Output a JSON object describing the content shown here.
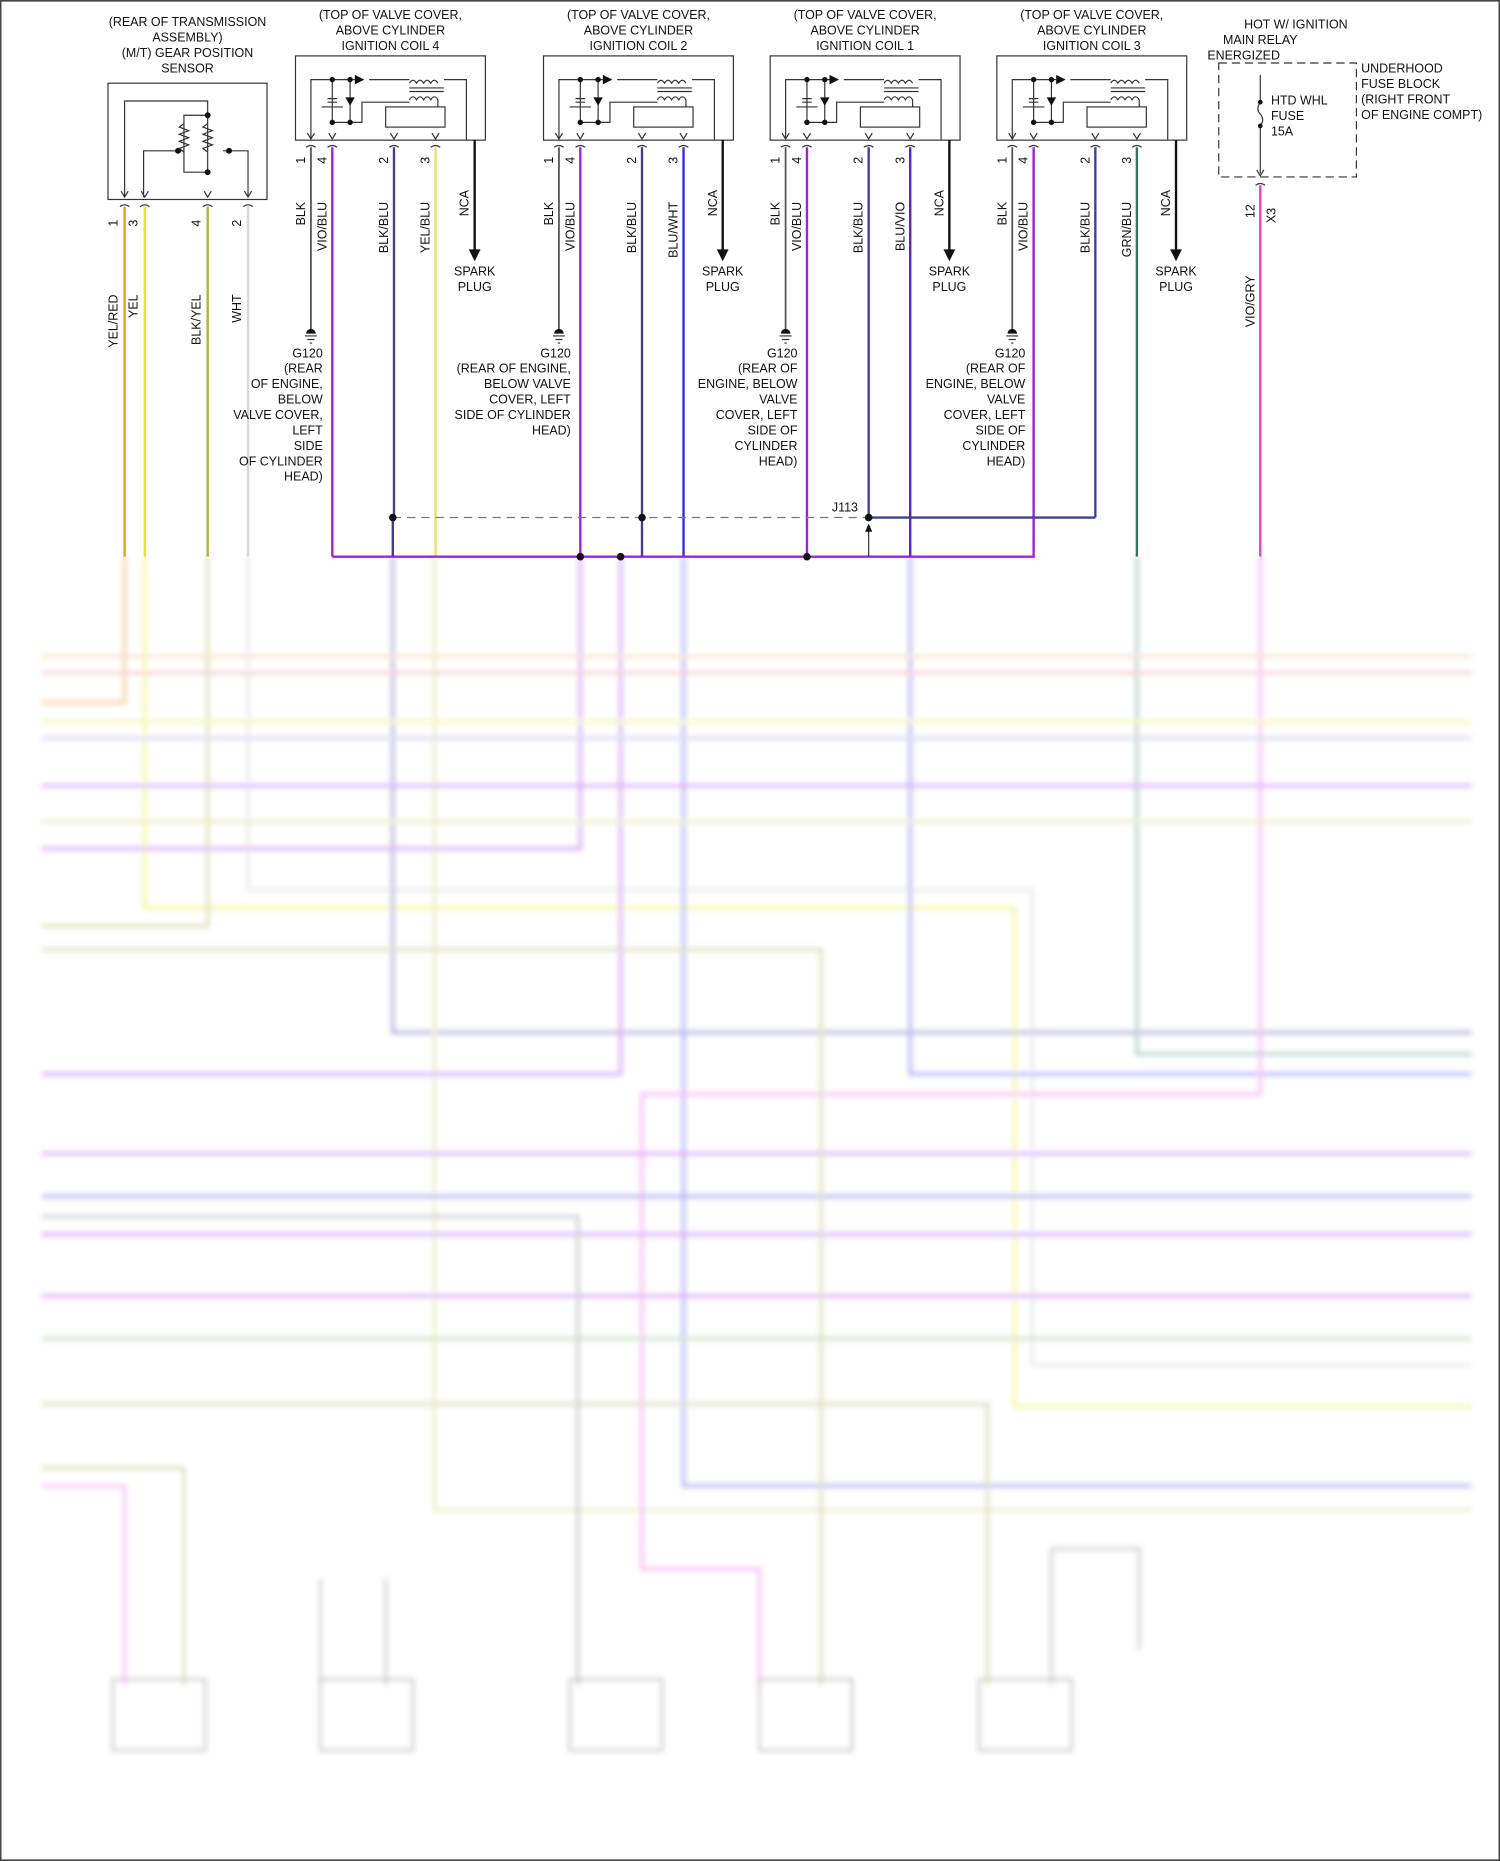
{
  "sensor": {
    "title_lines": [
      "(REAR OF TRANSMISSION",
      "ASSEMBLY)",
      "(M/T) GEAR POSITION",
      "SENSOR"
    ],
    "pins": [
      {
        "pin": "1",
        "wire": "YEL/RED",
        "color": "#e8a020"
      },
      {
        "pin": "3",
        "wire": "YEL",
        "color": "#f2e41a"
      },
      {
        "pin": "4",
        "wire": "BLK/YEL",
        "color": "#b8b040"
      },
      {
        "pin": "2",
        "wire": "WHT",
        "color": "#d8d8d8"
      }
    ]
  },
  "coils": [
    {
      "title_lines": [
        "(TOP OF VALVE COVER,",
        "ABOVE CYLINDER",
        "IGNITION COIL 4"
      ],
      "pins": [
        {
          "pin": "1",
          "wire": "BLK",
          "color": "#555555"
        },
        {
          "pin": "4",
          "wire": "VIO/BLU",
          "color": "#a020e0"
        },
        {
          "pin": "2",
          "wire": "BLK/BLU",
          "color": "#404090"
        },
        {
          "pin": "3",
          "wire": "YEL/BLU",
          "color": "#e8e070"
        }
      ],
      "nca": "NCA",
      "spark_plug": [
        "SPARK",
        "PLUG"
      ],
      "ground_lines": [
        "G120",
        "(REAR",
        "OF ENGINE,",
        "BELOW",
        "VALVE COVER,",
        "LEFT",
        "SIDE",
        "OF CYLINDER",
        "HEAD)"
      ]
    },
    {
      "title_lines": [
        "(TOP OF VALVE COVER,",
        "ABOVE CYLINDER",
        "IGNITION COIL 2"
      ],
      "pins": [
        {
          "pin": "1",
          "wire": "BLK",
          "color": "#555555"
        },
        {
          "pin": "4",
          "wire": "VIO/BLU",
          "color": "#a020e0"
        },
        {
          "pin": "2",
          "wire": "BLK/BLU",
          "color": "#404090"
        },
        {
          "pin": "3",
          "wire": "BLU/WHT",
          "color": "#3030d0"
        }
      ],
      "nca": "NCA",
      "spark_plug": [
        "SPARK",
        "PLUG"
      ],
      "ground_lines": [
        "G120",
        "(REAR OF ENGINE,",
        "BELOW VALVE",
        "COVER, LEFT",
        "SIDE OF CYLINDER",
        "HEAD)"
      ]
    },
    {
      "title_lines": [
        "(TOP OF VALVE COVER,",
        "ABOVE CYLINDER",
        "IGNITION COIL 1"
      ],
      "pins": [
        {
          "pin": "1",
          "wire": "BLK",
          "color": "#555555"
        },
        {
          "pin": "4",
          "wire": "VIO/BLU",
          "color": "#a020e0"
        },
        {
          "pin": "2",
          "wire": "BLK/BLU",
          "color": "#404090"
        },
        {
          "pin": "3",
          "wire": "BLU/VIO",
          "color": "#5a20d0"
        }
      ],
      "nca": "NCA",
      "spark_plug": [
        "SPARK",
        "PLUG"
      ],
      "ground_lines": [
        "G120",
        "(REAR OF",
        "ENGINE, BELOW",
        "VALVE",
        "COVER, LEFT",
        "SIDE OF",
        "CYLINDER",
        "HEAD)"
      ]
    },
    {
      "title_lines": [
        "(TOP OF VALVE COVER,",
        "ABOVE CYLINDER",
        "IGNITION COIL 3"
      ],
      "pins": [
        {
          "pin": "1",
          "wire": "BLK",
          "color": "#555555"
        },
        {
          "pin": "4",
          "wire": "VIO/BLU",
          "color": "#a020e0"
        },
        {
          "pin": "2",
          "wire": "BLK/BLU",
          "color": "#404090"
        },
        {
          "pin": "3",
          "wire": "GRN/BLU",
          "color": "#2a7a5a"
        }
      ],
      "nca": "NCA",
      "spark_plug": [
        "SPARK",
        "PLUG"
      ],
      "ground_lines": [
        "G120",
        "(REAR OF",
        "ENGINE, BELOW",
        "VALVE",
        "COVER, LEFT",
        "SIDE OF",
        "CYLINDER",
        "HEAD)"
      ]
    }
  ],
  "fuse_block": {
    "hot_lines": [
      "HOT W/ IGNITION",
      "MAIN RELAY",
      "ENERGIZED"
    ],
    "block_lines": [
      "UNDERHOOD",
      "FUSE BLOCK",
      "(RIGHT FRONT",
      "OF ENGINE COMPT)"
    ],
    "fuse_lines": [
      "HTD WHL",
      "FUSE",
      "15A"
    ],
    "pin": "12",
    "connector": "X3",
    "wire": "VIO/GRY",
    "color": "#e040e0"
  },
  "splice": {
    "label": "J113"
  }
}
